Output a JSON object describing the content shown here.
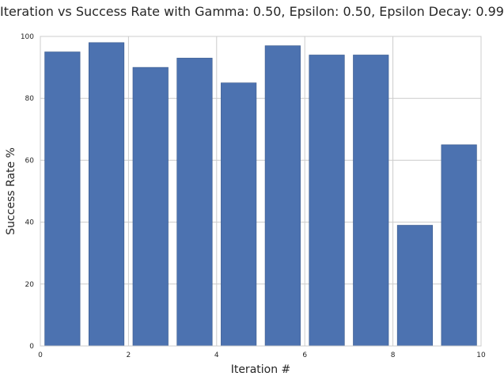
{
  "chart_data": {
    "type": "bar",
    "title": "Iteration vs Success Rate with Gamma: 0.50, Epsilon: 0.50, Epsilon Decay: 0.99",
    "xlabel": "Iteration #",
    "ylabel": "Success Rate %",
    "x": [
      0,
      1,
      2,
      3,
      4,
      5,
      6,
      7,
      8,
      9
    ],
    "values": [
      95,
      98,
      90,
      93,
      85,
      97,
      94,
      94,
      39,
      65
    ],
    "bar_width": 0.8,
    "xlim": [
      0,
      10
    ],
    "ylim": [
      0,
      100
    ],
    "xticks": [
      0,
      2,
      4,
      6,
      8,
      10
    ],
    "yticks": [
      0,
      20,
      40,
      60,
      80,
      100
    ],
    "grid": true,
    "colors": {
      "bar": "#4c72b0",
      "grid": "#cccccc",
      "frame": "#cccccc"
    }
  }
}
